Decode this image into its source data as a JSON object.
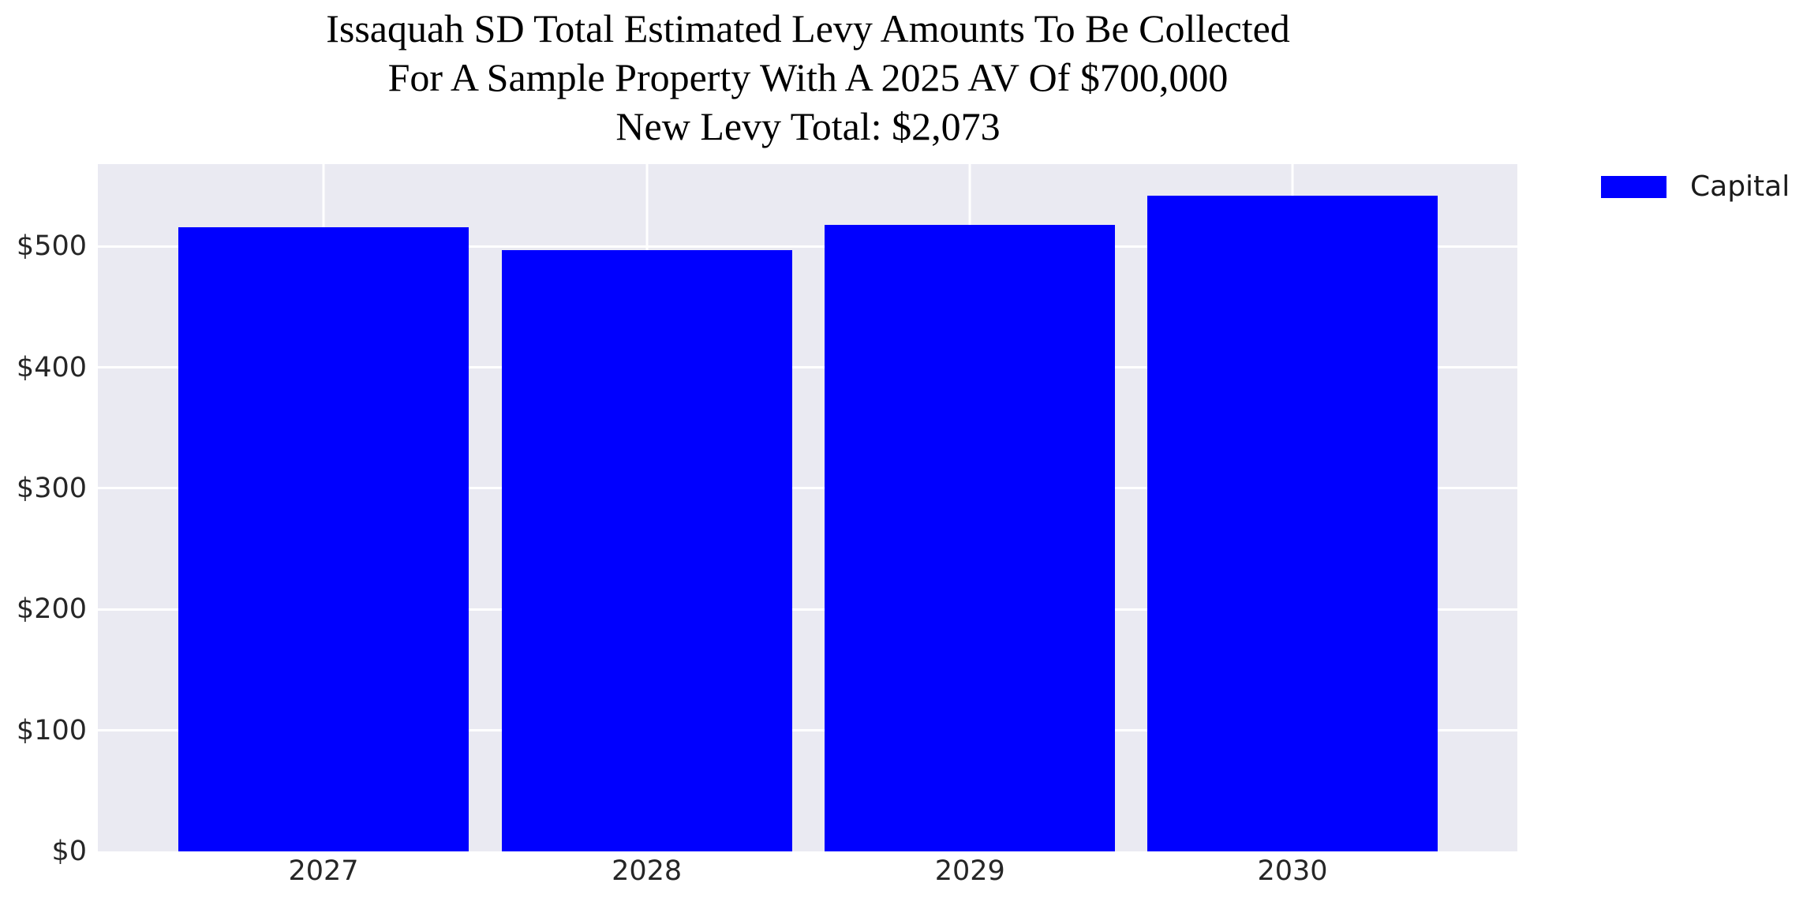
{
  "chart_data": {
    "type": "bar",
    "title_lines": [
      "Issaquah SD Total Estimated Levy Amounts To Be Collected",
      "For A Sample Property With A 2025 AV Of $700,000",
      "New Levy Total: $2,073"
    ],
    "categories": [
      "2027",
      "2028",
      "2029",
      "2030"
    ],
    "series": [
      {
        "name": "Capital",
        "color": "#0000FF",
        "values": [
          516,
          497,
          518,
          542
        ]
      }
    ],
    "y_ticks": [
      {
        "label": "$0",
        "value": 0
      },
      {
        "label": "$100",
        "value": 100
      },
      {
        "label": "$200",
        "value": 200
      },
      {
        "label": "$300",
        "value": 300
      },
      {
        "label": "$400",
        "value": 400
      },
      {
        "label": "$500",
        "value": 500
      }
    ],
    "ylim": [
      0,
      568
    ],
    "xlabel": "",
    "ylabel": "",
    "grid": true,
    "legend": {
      "position": "outside-upper-right",
      "entries": [
        "Capital"
      ]
    },
    "colors": {
      "plot_background": "#EAEAF2",
      "gridline": "#FFFFFF",
      "tick_text": "#262626",
      "title_text": "#000000"
    }
  }
}
